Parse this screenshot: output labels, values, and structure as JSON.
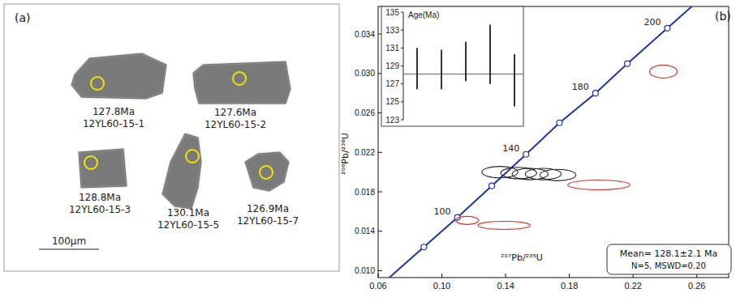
{
  "panel_a": {
    "label": "(a)",
    "scale_bar": "100μm",
    "grains": [
      {
        "age": "127.8Ma",
        "spot": "12YL60-15-1"
      },
      {
        "age": "127.6Ma",
        "spot": "12YL60-15-2"
      },
      {
        "age": "128.8Ma",
        "spot": "12YL60-15-3"
      },
      {
        "age": "130.1Ma",
        "spot": "12YL60-15-5"
      },
      {
        "age": "126.9Ma",
        "spot": "12YL60-15-7"
      }
    ]
  },
  "chart_data": [
    {
      "type": "concordia",
      "title": "(b)",
      "x_label": "²⁰⁷Pb/²³⁵U",
      "y_label": "²⁰⁶Pb/²³⁸U",
      "xlim": [
        0.06,
        0.28
      ],
      "ylim": [
        0.0093,
        0.0368
      ],
      "xticks": [
        0.06,
        {
          "value": 0.1,
          "label": "0.10"
        },
        0.14,
        0.18,
        0.22,
        0.26
      ],
      "yticks": [
        {
          "value": 0.01,
          "label": "0.010"
        },
        0.014,
        0.018,
        0.022,
        0.026,
        {
          "value": 0.03,
          "label": "0.030"
        },
        0.034
      ],
      "annotation": [
        "Mean= 128.1±2.1 Ma",
        "N=5, MSWD=0.20"
      ],
      "series": [
        {
          "type": "line",
          "color": "#1f35a5",
          "marker": "circle",
          "x": [
            0.0887,
            0.1097,
            0.1313,
            0.1528,
            0.1738,
            0.1964,
            0.2164,
            0.2415
          ],
          "values": [
            0.0124,
            0.0154,
            0.0186,
            0.0218,
            0.025,
            0.028,
            0.031,
            0.0346
          ],
          "point_labels": [
            null,
            "100",
            null,
            "140",
            null,
            "180",
            null,
            "200"
          ]
        },
        {
          "type": "ellipse",
          "color": "#222222",
          "x": [
            0.1364,
            0.1482,
            0.1554,
            0.1636,
            0.1728
          ],
          "values": [
            0.02,
            0.0199,
            0.0198,
            0.0198,
            0.0197
          ],
          "x_error": [
            0.0113,
            0.0113,
            0.0113,
            0.0113,
            0.0113
          ],
          "y_error": [
            0.00058,
            0.00058,
            0.00058,
            0.00058,
            0.00058
          ]
        },
        {
          "type": "ellipse",
          "color": "#d9322a",
          "x": [
            0.1159,
            0.139,
            0.1985,
            0.239
          ],
          "values": [
            0.0151,
            0.0146,
            0.0187,
            0.0302
          ],
          "x_error": [
            0.0072,
            0.0164,
            0.0195,
            0.0087
          ],
          "y_error": [
            0.00041,
            0.00041,
            0.00049,
            0.00066
          ]
        }
      ]
    },
    {
      "type": "error_bar",
      "title": "Age(Ma)",
      "color": "#000000",
      "tick_labels": "y",
      "ylim": [
        123,
        135
      ],
      "yticks": [
        123,
        125,
        127,
        129,
        131,
        133,
        135
      ],
      "values": [
        128.7,
        128.6,
        129.5,
        130.3,
        127.4
      ],
      "errors": [
        2.3,
        2.2,
        2.2,
        3.3,
        2.9
      ],
      "mean": 128.1
    }
  ]
}
